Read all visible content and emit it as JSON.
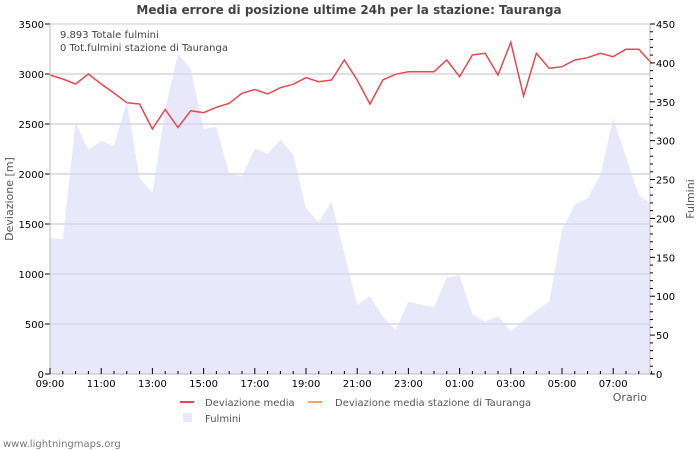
{
  "chart_data": {
    "type": "line",
    "title": "Media errore di posizione ultime 24h per la stazione: Tauranga",
    "xlabel": "Orario",
    "ylabel": "Deviazione  [m]",
    "y2label": "Fulmini",
    "ylim": [
      0,
      3500
    ],
    "y2lim": [
      0,
      450
    ],
    "yticks": [
      0,
      500,
      1000,
      1500,
      2000,
      2500,
      3000,
      3500
    ],
    "y2ticks": [
      0,
      50,
      100,
      150,
      200,
      250,
      300,
      350,
      400,
      450
    ],
    "xticks": [
      "09:00",
      "11:00",
      "13:00",
      "15:00",
      "17:00",
      "19:00",
      "21:00",
      "23:00",
      "01:00",
      "03:00",
      "05:00",
      "07:00"
    ],
    "grid": true,
    "legend_position": "bottom",
    "annotations": [
      "9.893 Totale fulmini",
      "0 Tot.fulmini stazione di Tauranga"
    ],
    "x": [
      "09:00",
      "09:30",
      "10:00",
      "10:30",
      "11:00",
      "11:30",
      "12:00",
      "12:30",
      "13:00",
      "13:30",
      "14:00",
      "14:30",
      "15:00",
      "15:30",
      "16:00",
      "16:30",
      "17:00",
      "17:30",
      "18:00",
      "18:30",
      "19:00",
      "19:30",
      "20:00",
      "20:30",
      "21:00",
      "21:30",
      "22:00",
      "22:30",
      "23:00",
      "23:30",
      "00:00",
      "00:30",
      "01:00",
      "01:30",
      "02:00",
      "02:30",
      "03:00",
      "03:30",
      "04:00",
      "04:30",
      "05:00",
      "05:30",
      "06:00",
      "06:30",
      "07:00",
      "07:30",
      "08:00",
      "08:30"
    ],
    "series": [
      {
        "name": "Deviazione media",
        "axis": "left",
        "color": "#e8474f",
        "values": [
          2990,
          2950,
          2900,
          3000,
          2900,
          2810,
          2713,
          2700,
          2450,
          2645,
          2465,
          2633,
          2613,
          2667,
          2707,
          2807,
          2845,
          2800,
          2863,
          2897,
          2963,
          2923,
          2940,
          3140,
          2940,
          2700,
          2940,
          2997,
          3023,
          3023,
          3023,
          3140,
          2973,
          3190,
          3207,
          2990,
          3317,
          2780,
          3207,
          3057,
          3073,
          3140,
          3163,
          3207,
          3173,
          3247,
          3247,
          3107
        ]
      },
      {
        "name": "Deviazione media stazione di Tauranga",
        "axis": "left",
        "color": "#f4a460",
        "values": []
      },
      {
        "name": "Fulmini",
        "axis": "right",
        "type": "area",
        "color": "#e8e8fa",
        "values": [
          175,
          173,
          323,
          288,
          300,
          293,
          350,
          252,
          233,
          339,
          412,
          392,
          315,
          318,
          257,
          254,
          290,
          283,
          301,
          282,
          213,
          195,
          222,
          155,
          89,
          100,
          74,
          57,
          93,
          89,
          86,
          124,
          127,
          77,
          67,
          75,
          55,
          69,
          82,
          93,
          185,
          218,
          226,
          256,
          329,
          279,
          230,
          219
        ]
      }
    ]
  },
  "legend": {
    "items": [
      {
        "label": "Deviazione media",
        "color": "#e8474f"
      },
      {
        "label": "Deviazione media stazione di Tauranga",
        "color": "#f4a460"
      },
      {
        "label": "Fulmini",
        "color": "#e8e8fa"
      }
    ]
  },
  "footer": "www.lightningmaps.org"
}
